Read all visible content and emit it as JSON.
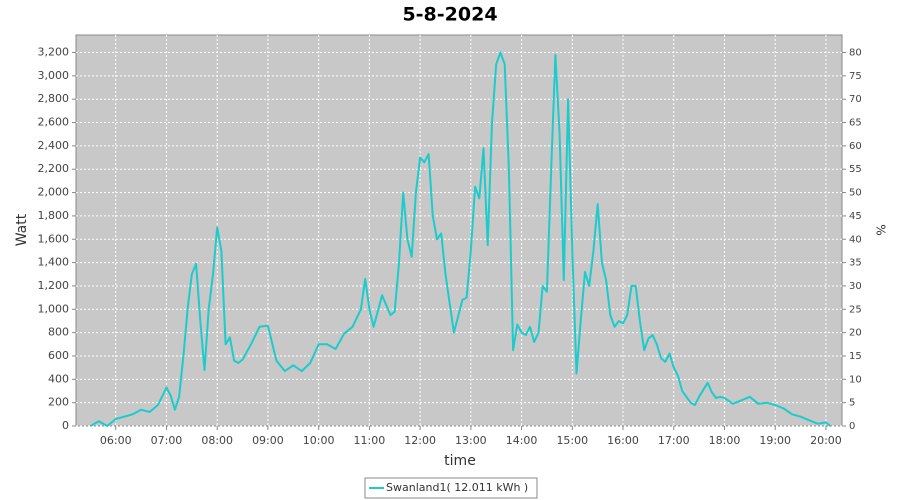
{
  "chart_data": {
    "type": "line",
    "title": "5-8-2024",
    "xlabel": "time",
    "ylabel": "Watt",
    "y2label": "%",
    "x": [
      "05:30",
      "05:40",
      "05:50",
      "06:00",
      "06:10",
      "06:20",
      "06:30",
      "06:40",
      "06:50",
      "07:00",
      "07:05",
      "07:10",
      "07:15",
      "07:20",
      "07:25",
      "07:30",
      "07:35",
      "07:40",
      "07:45",
      "07:50",
      "07:55",
      "08:00",
      "08:05",
      "08:10",
      "08:15",
      "08:20",
      "08:25",
      "08:30",
      "08:40",
      "08:50",
      "09:00",
      "09:10",
      "09:20",
      "09:30",
      "09:40",
      "09:50",
      "10:00",
      "10:10",
      "10:20",
      "10:30",
      "10:40",
      "10:50",
      "10:55",
      "11:00",
      "11:05",
      "11:15",
      "11:25",
      "11:30",
      "11:35",
      "11:40",
      "11:45",
      "11:50",
      "11:55",
      "12:00",
      "12:05",
      "12:10",
      "12:15",
      "12:20",
      "12:25",
      "12:30",
      "12:40",
      "12:50",
      "12:55",
      "13:00",
      "13:05",
      "13:10",
      "13:15",
      "13:20",
      "13:25",
      "13:30",
      "13:35",
      "13:40",
      "13:45",
      "13:50",
      "13:55",
      "14:00",
      "14:05",
      "14:10",
      "14:15",
      "14:20",
      "14:25",
      "14:30",
      "14:35",
      "14:40",
      "14:45",
      "14:50",
      "14:55",
      "15:00",
      "15:05",
      "15:10",
      "15:15",
      "15:20",
      "15:25",
      "15:30",
      "15:35",
      "15:40",
      "15:45",
      "15:50",
      "15:55",
      "16:00",
      "16:05",
      "16:10",
      "16:15",
      "16:20",
      "16:25",
      "16:30",
      "16:35",
      "16:40",
      "16:45",
      "16:50",
      "16:55",
      "17:00",
      "17:05",
      "17:10",
      "17:15",
      "17:20",
      "17:25",
      "17:30",
      "17:35",
      "17:40",
      "17:45",
      "17:50",
      "17:55",
      "18:00",
      "18:10",
      "18:20",
      "18:30",
      "18:40",
      "18:50",
      "19:00",
      "19:10",
      "19:20",
      "19:30",
      "19:40",
      "19:50",
      "20:00",
      "20:05"
    ],
    "series": [
      {
        "name": "Swanland1( 12.011 kWh )",
        "color": "#1ccccc",
        "values": [
          0,
          40,
          0,
          60,
          80,
          100,
          140,
          120,
          180,
          330,
          260,
          140,
          250,
          600,
          1000,
          1300,
          1390,
          900,
          480,
          1000,
          1300,
          1700,
          1500,
          700,
          760,
          560,
          540,
          570,
          700,
          850,
          860,
          560,
          470,
          520,
          470,
          540,
          700,
          700,
          660,
          790,
          850,
          1000,
          1260,
          1000,
          850,
          1120,
          950,
          980,
          1400,
          2000,
          1600,
          1450,
          2000,
          2300,
          2260,
          2330,
          1800,
          1600,
          1650,
          1300,
          800,
          1080,
          1100,
          1500,
          2050,
          1950,
          2380,
          1550,
          2600,
          3100,
          3200,
          3100,
          2200,
          650,
          870,
          800,
          780,
          850,
          720,
          800,
          1200,
          1150,
          2200,
          3180,
          2500,
          1250,
          2800,
          1500,
          450,
          900,
          1320,
          1200,
          1500,
          1900,
          1400,
          1250,
          950,
          850,
          900,
          880,
          950,
          1200,
          1200,
          900,
          650,
          750,
          780,
          700,
          580,
          550,
          620,
          500,
          430,
          300,
          250,
          200,
          180,
          250,
          310,
          370,
          290,
          240,
          250,
          240,
          190,
          220,
          250,
          190,
          200,
          180,
          150,
          100,
          80,
          50,
          20,
          30,
          0
        ]
      }
    ],
    "xlim": [
      "05:13",
      "20:19"
    ],
    "xticks": [
      "06:00",
      "07:00",
      "08:00",
      "09:00",
      "10:00",
      "11:00",
      "12:00",
      "13:00",
      "14:00",
      "15:00",
      "16:00",
      "17:00",
      "18:00",
      "19:00",
      "20:00"
    ],
    "ylim": [
      0,
      3350
    ],
    "yticks": [
      0,
      200,
      400,
      600,
      800,
      {
        "value": 1000,
        "label": "1,000"
      },
      {
        "value": 1200,
        "label": "1,200"
      },
      {
        "value": 1400,
        "label": "1,400"
      },
      {
        "value": 1600,
        "label": "1,600"
      },
      {
        "value": 1800,
        "label": "1,800"
      },
      {
        "value": 2000,
        "label": "2,000"
      },
      {
        "value": 2200,
        "label": "2,200"
      },
      {
        "value": 2400,
        "label": "2,400"
      },
      {
        "value": 2600,
        "label": "2,600"
      },
      {
        "value": 2800,
        "label": "2,800"
      },
      {
        "value": 3000,
        "label": "3,000"
      },
      {
        "value": 3200,
        "label": "3,200"
      }
    ],
    "y2lim": [
      0,
      83.75
    ],
    "y2ticks": [
      0,
      5,
      10,
      15,
      20,
      25,
      30,
      35,
      40,
      45,
      50,
      55,
      60,
      65,
      70,
      75,
      80
    ],
    "grid": true
  }
}
